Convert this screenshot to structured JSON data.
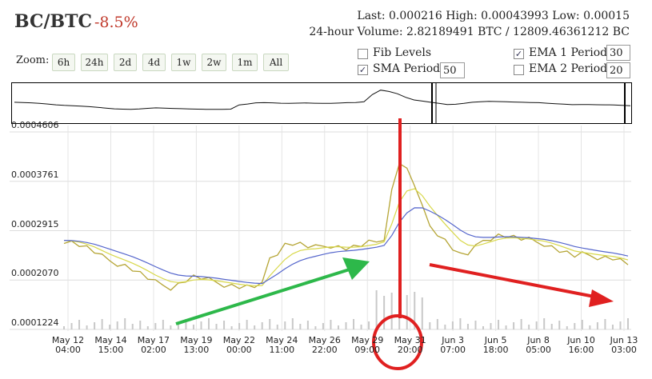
{
  "header": {
    "pair": "BC/BTC",
    "change": "-8.5%",
    "last_label": "Last:",
    "last": "0.000216",
    "high_label": "High:",
    "high": "0.00043993",
    "low_label": "Low:",
    "low": "0.00015",
    "volume_label": "24-hour Volume:",
    "volume_btc": "2.82189491 BTC",
    "volume_bc": "12809.46361212 BC"
  },
  "zoom": {
    "label": "Zoom:",
    "buttons": [
      "6h",
      "24h",
      "2d",
      "4d",
      "1w",
      "2w",
      "1m",
      "All"
    ]
  },
  "options": {
    "fib_label": "Fib Levels",
    "fib_checked": false,
    "sma_label": "SMA Period:",
    "sma_checked": true,
    "sma_value": "50",
    "ema1_label": "EMA 1 Period:",
    "ema1_checked": true,
    "ema1_value": "30",
    "ema2_label": "EMA 2 Period:",
    "ema2_checked": false,
    "ema2_value": "20"
  },
  "colors": {
    "price": "#b5a535",
    "sma": "#5566cc",
    "ema": "#d8d84a",
    "arrow_up": "#2db84a",
    "arrow_down": "#e02020",
    "annotation": "#e02020"
  },
  "chart_data": {
    "type": "line",
    "title": "",
    "xlabel": "",
    "ylabel": "",
    "y_ticks": [
      "0.0004606",
      "0.0003761",
      "0.0002915",
      "0.0002070",
      "0.0001224"
    ],
    "ylim": [
      0.0001224,
      0.0004606
    ],
    "x_ticks": [
      {
        "date": "May 12",
        "time": "04:00"
      },
      {
        "date": "May 14",
        "time": "15:00"
      },
      {
        "date": "May 17",
        "time": "02:00"
      },
      {
        "date": "May 19",
        "time": "13:00"
      },
      {
        "date": "May 22",
        "time": "00:00"
      },
      {
        "date": "May 24",
        "time": "11:00"
      },
      {
        "date": "May 26",
        "time": "22:00"
      },
      {
        "date": "May 29",
        "time": "09:00"
      },
      {
        "date": "May 31",
        "time": "20:00"
      },
      {
        "date": "Jun 3",
        "time": "07:00"
      },
      {
        "date": "Jun 5",
        "time": "18:00"
      },
      {
        "date": "Jun 8",
        "time": "05:00"
      },
      {
        "date": "Jun 10",
        "time": "16:00"
      },
      {
        "date": "Jun 13",
        "time": "03:00"
      }
    ],
    "series": [
      {
        "values": [
          0.000275,
          0.000272,
          0.000268,
          0.000262,
          0.000255,
          0.000246,
          0.00024,
          0.000236,
          0.000232,
          0.000226,
          0.000218,
          0.00021,
          0.000202,
          0.000198,
          0.000195,
          0.0002,
          0.000207,
          0.000212,
          0.00021,
          0.000206,
          0.000203,
          0.0002,
          0.000198,
          0.000196,
          0.000195,
          0.000196,
          0.000198,
          0.000245,
          0.000255,
          0.000268,
          0.00027,
          0.000268,
          0.000264,
          0.000262,
          0.000265,
          0.000267,
          0.000264,
          0.000262,
          0.000263,
          0.000266,
          0.00027,
          0.000272,
          0.00028,
          0.00036,
          0.00041,
          0.000395,
          0.00037,
          0.00033,
          0.0003,
          0.000288,
          0.000275,
          0.000262,
          0.00025,
          0.000252,
          0.000262,
          0.000275,
          0.00028,
          0.000284,
          0.000283,
          0.00028,
          0.000277,
          0.000275,
          0.000272,
          0.00027,
          0.000264,
          0.000258,
          0.000253,
          0.000248,
          0.00025,
          0.000249,
          0.000247,
          0.000246,
          0.000245,
          0.00024,
          0.000235
        ]
      }
    ]
  },
  "annotations": [
    "green-up-arrow",
    "red-vertical-marker",
    "red-circle",
    "red-down-arrow"
  ]
}
